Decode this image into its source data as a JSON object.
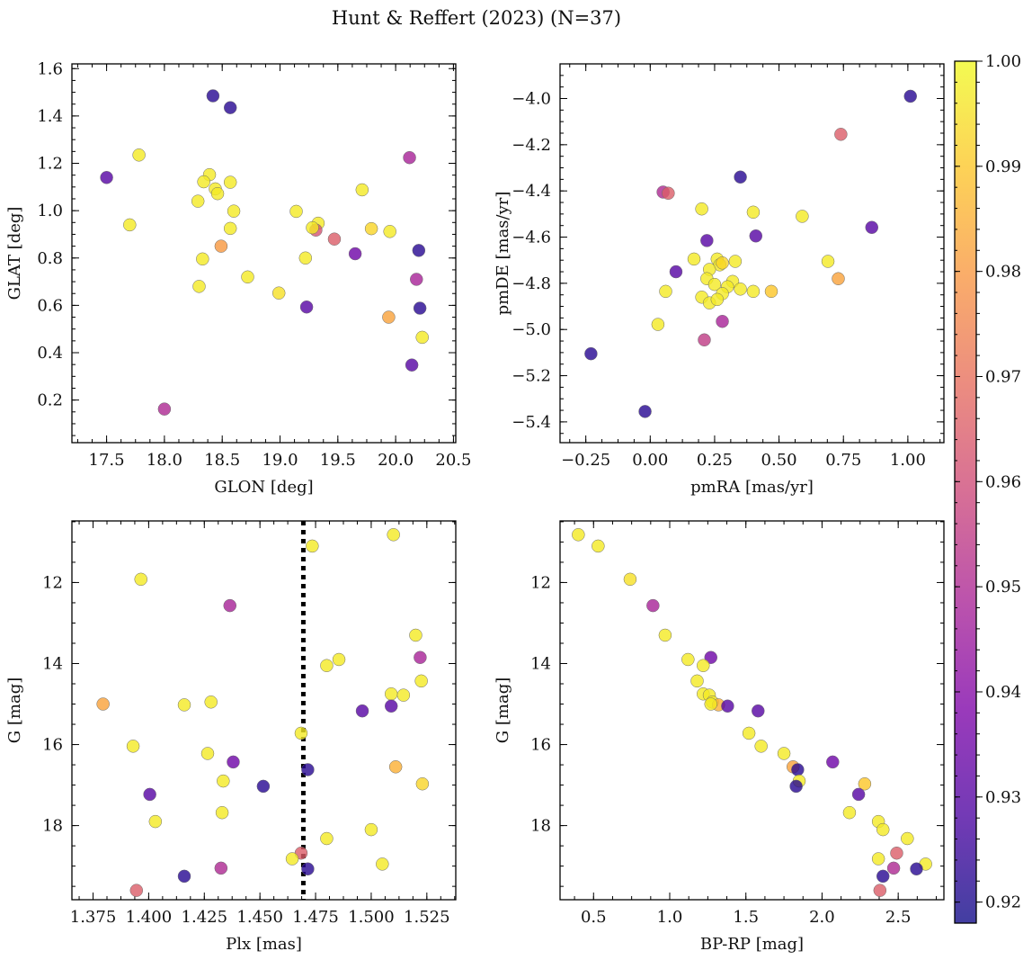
{
  "title": "Hunt & Reffert (2023) (N=37)",
  "colorbar": {
    "vmin": 0.918,
    "vmax": 1.0,
    "ticks": [
      0.92,
      0.93,
      0.94,
      0.95,
      0.96,
      0.97,
      0.98,
      0.99,
      1.0
    ],
    "tick_labels": [
      "0.92",
      "0.93",
      "0.94",
      "0.95",
      "0.96",
      "0.97",
      "0.98",
      "0.99",
      "1.00"
    ],
    "colormap": "plasma"
  },
  "chart_data": [
    {
      "type": "scatter",
      "panel": "top-left",
      "xlabel": "GLON [deg]",
      "ylabel": "GLAT [deg]",
      "xlim": [
        17.2,
        20.52
      ],
      "ylim": [
        0.02,
        1.62
      ],
      "yinvert": false,
      "xticks": [
        17.5,
        18.0,
        18.5,
        19.0,
        19.5,
        20.0,
        20.5
      ],
      "xtick_labels": [
        "17.5",
        "18.0",
        "18.5",
        "19.0",
        "19.5",
        "20.0",
        "20.5"
      ],
      "yticks": [
        0.2,
        0.4,
        0.6,
        0.8,
        1.0,
        1.2,
        1.4,
        1.6
      ],
      "ytick_labels": [
        "0.2",
        "0.4",
        "0.6",
        "0.8",
        "1.0",
        "1.2",
        "1.4",
        "1.6"
      ],
      "points": [
        {
          "x": 18.42,
          "y": 1.485,
          "c": 0.922
        },
        {
          "x": 18.57,
          "y": 1.435,
          "c": 0.922
        },
        {
          "x": 17.5,
          "y": 1.14,
          "c": 0.93
        },
        {
          "x": 17.78,
          "y": 1.235,
          "c": 0.997
        },
        {
          "x": 17.7,
          "y": 0.94,
          "c": 0.997
        },
        {
          "x": 18.39,
          "y": 1.152,
          "c": 0.997
        },
        {
          "x": 18.34,
          "y": 1.122,
          "c": 0.997
        },
        {
          "x": 18.44,
          "y": 1.092,
          "c": 0.997
        },
        {
          "x": 18.46,
          "y": 1.072,
          "c": 0.997
        },
        {
          "x": 18.57,
          "y": 1.12,
          "c": 0.997
        },
        {
          "x": 18.29,
          "y": 1.04,
          "c": 0.997
        },
        {
          "x": 18.6,
          "y": 0.998,
          "c": 0.997
        },
        {
          "x": 18.57,
          "y": 0.925,
          "c": 0.997
        },
        {
          "x": 18.49,
          "y": 0.85,
          "c": 0.98
        },
        {
          "x": 18.33,
          "y": 0.796,
          "c": 0.997
        },
        {
          "x": 18.3,
          "y": 0.68,
          "c": 0.997
        },
        {
          "x": 18.72,
          "y": 0.72,
          "c": 0.997
        },
        {
          "x": 18.99,
          "y": 0.652,
          "c": 0.995
        },
        {
          "x": 19.14,
          "y": 0.997,
          "c": 0.997
        },
        {
          "x": 19.33,
          "y": 0.947,
          "c": 0.997
        },
        {
          "x": 19.31,
          "y": 0.918,
          "c": 0.962
        },
        {
          "x": 19.28,
          "y": 0.928,
          "c": 0.997
        },
        {
          "x": 19.22,
          "y": 0.8,
          "c": 0.997
        },
        {
          "x": 19.47,
          "y": 0.88,
          "c": 0.965
        },
        {
          "x": 19.23,
          "y": 0.593,
          "c": 0.93
        },
        {
          "x": 19.65,
          "y": 0.818,
          "c": 0.935
        },
        {
          "x": 19.71,
          "y": 1.088,
          "c": 0.997
        },
        {
          "x": 19.79,
          "y": 0.924,
          "c": 0.993
        },
        {
          "x": 19.95,
          "y": 0.912,
          "c": 0.997
        },
        {
          "x": 19.94,
          "y": 0.55,
          "c": 0.982
        },
        {
          "x": 20.12,
          "y": 1.224,
          "c": 0.948
        },
        {
          "x": 20.2,
          "y": 0.832,
          "c": 0.922
        },
        {
          "x": 20.18,
          "y": 0.71,
          "c": 0.948
        },
        {
          "x": 20.21,
          "y": 0.588,
          "c": 0.922
        },
        {
          "x": 20.23,
          "y": 0.465,
          "c": 0.997
        },
        {
          "x": 20.14,
          "y": 0.348,
          "c": 0.93
        },
        {
          "x": 18.0,
          "y": 0.162,
          "c": 0.95
        }
      ]
    },
    {
      "type": "scatter",
      "panel": "top-right",
      "xlabel": "pmRA [mas/yr]",
      "ylabel": "pmDE [mas/yr]",
      "xlim": [
        -0.35,
        1.14
      ],
      "ylim": [
        -5.49,
        -3.85
      ],
      "yinvert": false,
      "xticks": [
        -0.25,
        0.0,
        0.25,
        0.5,
        0.75,
        1.0
      ],
      "xtick_labels": [
        "−0.25",
        "0.00",
        "0.25",
        "0.50",
        "0.75",
        "1.00"
      ],
      "yticks": [
        -5.4,
        -5.2,
        -5.0,
        -4.8,
        -4.6,
        -4.4,
        -4.2,
        -4.0
      ],
      "ytick_labels": [
        "−5.4",
        "−5.2",
        "−5.0",
        "−4.8",
        "−4.6",
        "−4.4",
        "−4.2",
        "−4.0"
      ],
      "points": [
        {
          "x": 1.01,
          "y": -3.99,
          "c": 0.922
        },
        {
          "x": 0.74,
          "y": -4.155,
          "c": 0.965
        },
        {
          "x": 0.35,
          "y": -4.34,
          "c": 0.922
        },
        {
          "x": 0.05,
          "y": -4.405,
          "c": 0.95
        },
        {
          "x": 0.07,
          "y": -4.41,
          "c": 0.965
        },
        {
          "x": 0.2,
          "y": -4.478,
          "c": 0.997
        },
        {
          "x": 0.4,
          "y": -4.492,
          "c": 0.997
        },
        {
          "x": 0.59,
          "y": -4.51,
          "c": 0.997
        },
        {
          "x": 0.86,
          "y": -4.558,
          "c": 0.93
        },
        {
          "x": 0.41,
          "y": -4.595,
          "c": 0.93
        },
        {
          "x": 0.22,
          "y": -4.615,
          "c": 0.93
        },
        {
          "x": 0.69,
          "y": -4.705,
          "c": 0.997
        },
        {
          "x": 0.73,
          "y": -4.78,
          "c": 0.982
        },
        {
          "x": 0.1,
          "y": -4.75,
          "c": 0.93
        },
        {
          "x": 0.17,
          "y": -4.695,
          "c": 0.997
        },
        {
          "x": 0.26,
          "y": -4.695,
          "c": 0.997
        },
        {
          "x": 0.27,
          "y": -4.72,
          "c": 0.997
        },
        {
          "x": 0.28,
          "y": -4.712,
          "c": 0.993
        },
        {
          "x": 0.33,
          "y": -4.705,
          "c": 0.997
        },
        {
          "x": 0.23,
          "y": -4.74,
          "c": 0.997
        },
        {
          "x": 0.22,
          "y": -4.78,
          "c": 0.997
        },
        {
          "x": 0.25,
          "y": -4.805,
          "c": 0.997
        },
        {
          "x": 0.32,
          "y": -4.792,
          "c": 0.997
        },
        {
          "x": 0.3,
          "y": -4.815,
          "c": 0.997
        },
        {
          "x": 0.35,
          "y": -4.825,
          "c": 0.997
        },
        {
          "x": 0.4,
          "y": -4.835,
          "c": 0.997
        },
        {
          "x": 0.47,
          "y": -4.835,
          "c": 0.99
        },
        {
          "x": 0.28,
          "y": -4.845,
          "c": 0.997
        },
        {
          "x": 0.06,
          "y": -4.835,
          "c": 0.997
        },
        {
          "x": 0.2,
          "y": -4.86,
          "c": 0.997
        },
        {
          "x": 0.23,
          "y": -4.885,
          "c": 0.997
        },
        {
          "x": 0.26,
          "y": -4.87,
          "c": 0.997
        },
        {
          "x": 0.28,
          "y": -4.965,
          "c": 0.948
        },
        {
          "x": 0.03,
          "y": -4.978,
          "c": 0.997
        },
        {
          "x": 0.21,
          "y": -5.045,
          "c": 0.955
        },
        {
          "x": -0.23,
          "y": -5.105,
          "c": 0.922
        },
        {
          "x": -0.02,
          "y": -5.355,
          "c": 0.922
        }
      ]
    },
    {
      "type": "scatter",
      "panel": "bottom-left",
      "xlabel": "Plx [mas]",
      "ylabel": "G [mag]",
      "xlim": [
        1.3655,
        1.538
      ],
      "ylim": [
        19.83,
        10.48
      ],
      "yinvert": true,
      "vline": {
        "x": 1.4695,
        "style": "dotted"
      },
      "xticks": [
        1.375,
        1.4,
        1.425,
        1.45,
        1.475,
        1.5,
        1.525
      ],
      "xtick_labels": [
        "1.375",
        "1.400",
        "1.425",
        "1.450",
        "1.475",
        "1.500",
        "1.525"
      ],
      "yticks": [
        12,
        14,
        16,
        18
      ],
      "ytick_labels": [
        "12",
        "14",
        "16",
        "18"
      ],
      "points": [
        {
          "x": 1.51,
          "y": 10.82,
          "c": 0.997
        },
        {
          "x": 1.4735,
          "y": 11.1,
          "c": 0.997
        },
        {
          "x": 1.3965,
          "y": 11.92,
          "c": 0.997
        },
        {
          "x": 1.4365,
          "y": 12.57,
          "c": 0.948
        },
        {
          "x": 1.52,
          "y": 13.3,
          "c": 0.997
        },
        {
          "x": 1.522,
          "y": 13.85,
          "c": 0.948
        },
        {
          "x": 1.4855,
          "y": 13.9,
          "c": 0.997
        },
        {
          "x": 1.48,
          "y": 14.05,
          "c": 0.997
        },
        {
          "x": 1.5225,
          "y": 14.43,
          "c": 0.997
        },
        {
          "x": 1.509,
          "y": 14.75,
          "c": 0.997
        },
        {
          "x": 1.5145,
          "y": 14.78,
          "c": 0.997
        },
        {
          "x": 1.428,
          "y": 14.95,
          "c": 0.997
        },
        {
          "x": 1.416,
          "y": 15.02,
          "c": 0.997
        },
        {
          "x": 1.3795,
          "y": 15.0,
          "c": 0.982
        },
        {
          "x": 1.509,
          "y": 15.05,
          "c": 0.93
        },
        {
          "x": 1.496,
          "y": 15.17,
          "c": 0.93
        },
        {
          "x": 1.4685,
          "y": 15.72,
          "c": 0.997
        },
        {
          "x": 1.393,
          "y": 16.04,
          "c": 0.997
        },
        {
          "x": 1.4265,
          "y": 16.22,
          "c": 0.997
        },
        {
          "x": 1.438,
          "y": 16.43,
          "c": 0.935
        },
        {
          "x": 1.511,
          "y": 16.55,
          "c": 0.985
        },
        {
          "x": 1.4715,
          "y": 16.62,
          "c": 0.922
        },
        {
          "x": 1.4335,
          "y": 16.9,
          "c": 0.997
        },
        {
          "x": 1.523,
          "y": 16.97,
          "c": 0.993
        },
        {
          "x": 1.4515,
          "y": 17.03,
          "c": 0.922
        },
        {
          "x": 1.4005,
          "y": 17.23,
          "c": 0.93
        },
        {
          "x": 1.433,
          "y": 17.68,
          "c": 0.997
        },
        {
          "x": 1.403,
          "y": 17.9,
          "c": 0.997
        },
        {
          "x": 1.5,
          "y": 18.1,
          "c": 0.997
        },
        {
          "x": 1.48,
          "y": 18.32,
          "c": 0.997
        },
        {
          "x": 1.4685,
          "y": 18.68,
          "c": 0.965
        },
        {
          "x": 1.4645,
          "y": 18.82,
          "c": 0.997
        },
        {
          "x": 1.505,
          "y": 18.95,
          "c": 0.997
        },
        {
          "x": 1.4325,
          "y": 19.05,
          "c": 0.95
        },
        {
          "x": 1.4715,
          "y": 19.07,
          "c": 0.922
        },
        {
          "x": 1.416,
          "y": 19.25,
          "c": 0.922
        },
        {
          "x": 1.3945,
          "y": 19.6,
          "c": 0.965
        }
      ]
    },
    {
      "type": "scatter",
      "panel": "bottom-right",
      "xlabel": "BP-RP [mag]",
      "ylabel": "G [mag]",
      "xlim": [
        0.28,
        2.8
      ],
      "ylim": [
        19.83,
        10.48
      ],
      "yinvert": true,
      "xticks": [
        0.5,
        1.0,
        1.5,
        2.0,
        2.5
      ],
      "xtick_labels": [
        "0.5",
        "1.0",
        "1.5",
        "2.0",
        "2.5"
      ],
      "yticks": [
        12,
        14,
        16,
        18
      ],
      "ytick_labels": [
        "12",
        "14",
        "16",
        "18"
      ],
      "points": [
        {
          "x": 0.4,
          "y": 10.82,
          "c": 0.997
        },
        {
          "x": 0.53,
          "y": 11.1,
          "c": 0.997
        },
        {
          "x": 0.74,
          "y": 11.92,
          "c": 0.995
        },
        {
          "x": 0.89,
          "y": 12.57,
          "c": 0.948
        },
        {
          "x": 0.97,
          "y": 13.3,
          "c": 0.997
        },
        {
          "x": 1.27,
          "y": 13.85,
          "c": 0.935
        },
        {
          "x": 1.12,
          "y": 13.9,
          "c": 0.997
        },
        {
          "x": 1.22,
          "y": 14.05,
          "c": 0.997
        },
        {
          "x": 1.18,
          "y": 14.43,
          "c": 0.997
        },
        {
          "x": 1.22,
          "y": 14.75,
          "c": 0.997
        },
        {
          "x": 1.26,
          "y": 14.78,
          "c": 0.997
        },
        {
          "x": 1.28,
          "y": 14.95,
          "c": 0.997
        },
        {
          "x": 1.32,
          "y": 15.02,
          "c": 0.985
        },
        {
          "x": 1.27,
          "y": 15.0,
          "c": 0.997
        },
        {
          "x": 1.38,
          "y": 15.05,
          "c": 0.93
        },
        {
          "x": 1.58,
          "y": 15.17,
          "c": 0.93
        },
        {
          "x": 1.52,
          "y": 15.72,
          "c": 0.997
        },
        {
          "x": 1.6,
          "y": 16.04,
          "c": 0.997
        },
        {
          "x": 1.75,
          "y": 16.22,
          "c": 0.997
        },
        {
          "x": 2.07,
          "y": 16.43,
          "c": 0.935
        },
        {
          "x": 1.81,
          "y": 16.55,
          "c": 0.982
        },
        {
          "x": 1.84,
          "y": 16.62,
          "c": 0.922
        },
        {
          "x": 1.85,
          "y": 16.9,
          "c": 0.997
        },
        {
          "x": 2.28,
          "y": 16.97,
          "c": 0.99
        },
        {
          "x": 1.83,
          "y": 17.03,
          "c": 0.922
        },
        {
          "x": 2.24,
          "y": 17.23,
          "c": 0.93
        },
        {
          "x": 2.18,
          "y": 17.68,
          "c": 0.997
        },
        {
          "x": 2.37,
          "y": 17.9,
          "c": 0.997
        },
        {
          "x": 2.4,
          "y": 18.1,
          "c": 0.997
        },
        {
          "x": 2.56,
          "y": 18.32,
          "c": 0.997
        },
        {
          "x": 2.49,
          "y": 18.68,
          "c": 0.965
        },
        {
          "x": 2.37,
          "y": 18.82,
          "c": 0.997
        },
        {
          "x": 2.68,
          "y": 18.95,
          "c": 0.997
        },
        {
          "x": 2.47,
          "y": 19.05,
          "c": 0.95
        },
        {
          "x": 2.62,
          "y": 19.07,
          "c": 0.922
        },
        {
          "x": 2.4,
          "y": 19.25,
          "c": 0.922
        },
        {
          "x": 2.38,
          "y": 19.6,
          "c": 0.965
        }
      ]
    }
  ]
}
